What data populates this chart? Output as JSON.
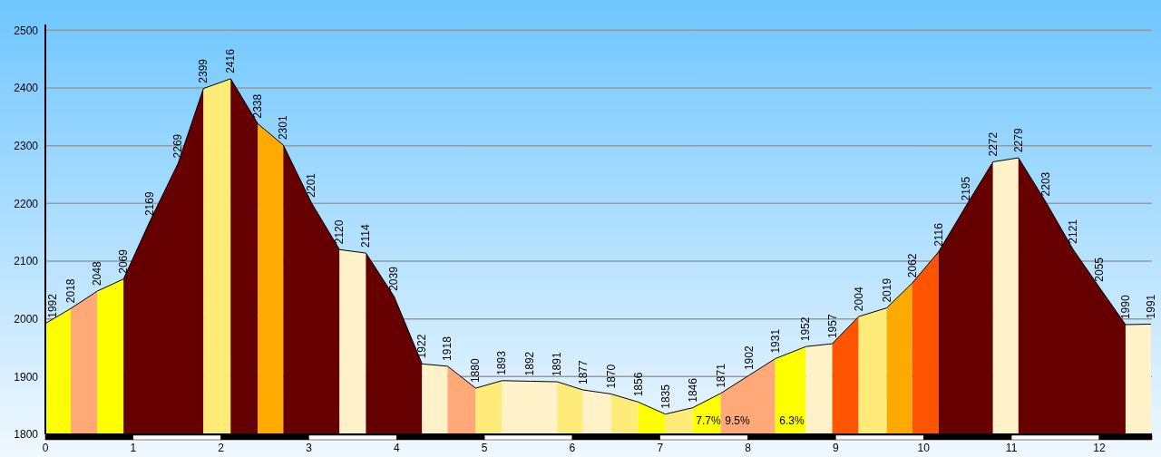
{
  "chart_data": {
    "type": "area",
    "series": [
      {
        "color": "#ffff00",
        "x": [
          0,
          0.29
        ],
        "values": [
          1992,
          2018
        ]
      },
      {
        "color": "#ffa878",
        "x": [
          0.29,
          0.59
        ],
        "values": [
          2018,
          2048
        ]
      },
      {
        "color": "#ffff00",
        "x": [
          0.59,
          0.89
        ],
        "values": [
          2048,
          2069
        ]
      },
      {
        "color": "#660000",
        "x": [
          0.89,
          1.19,
          1.51,
          1.8
        ],
        "values": [
          2069,
          2169,
          2269,
          2399
        ]
      },
      {
        "color": "#ffec78",
        "x": [
          1.8,
          2.11
        ],
        "values": [
          2399,
          2416
        ]
      },
      {
        "color": "#660000",
        "x": [
          2.11,
          2.42
        ],
        "values": [
          2416,
          2338
        ]
      },
      {
        "color": "#ffaa00",
        "x": [
          2.42,
          2.71
        ],
        "values": [
          2338,
          2301
        ]
      },
      {
        "color": "#660000",
        "x": [
          2.71,
          3.03,
          3.35
        ],
        "values": [
          2301,
          2201,
          2120
        ]
      },
      {
        "color": "#fff2c8",
        "x": [
          3.35,
          3.65
        ],
        "values": [
          2120,
          2114
        ]
      },
      {
        "color": "#660000",
        "x": [
          3.65,
          3.97,
          4.29
        ],
        "values": [
          2114,
          2039,
          1922
        ]
      },
      {
        "color": "#fff2c8",
        "x": [
          4.29,
          4.58
        ],
        "values": [
          1922,
          1918
        ]
      },
      {
        "color": "#ffa878",
        "x": [
          4.58,
          4.9
        ],
        "values": [
          1918,
          1880
        ]
      },
      {
        "color": "#ffec78",
        "x": [
          4.9,
          5.2
        ],
        "values": [
          1880,
          1893
        ]
      },
      {
        "color": "#fff2c8",
        "x": [
          5.2,
          5.52,
          5.83
        ],
        "values": [
          1893,
          1892,
          1891
        ]
      },
      {
        "color": "#ffec78",
        "x": [
          5.83,
          6.12
        ],
        "values": [
          1891,
          1877
        ]
      },
      {
        "color": "#fff2c8",
        "x": [
          6.12,
          6.44
        ],
        "values": [
          1877,
          1870
        ]
      },
      {
        "color": "#ffec78",
        "x": [
          6.44,
          6.75
        ],
        "values": [
          1870,
          1856
        ]
      },
      {
        "color": "#ffff00",
        "x": [
          6.75,
          7.06
        ],
        "values": [
          1856,
          1835
        ]
      },
      {
        "color": "#ffec78",
        "x": [
          7.06,
          7.37
        ],
        "values": [
          1835,
          1846
        ]
      },
      {
        "color": "#ffff00",
        "x": [
          7.37,
          7.69
        ],
        "values": [
          1846,
          1871
        ]
      },
      {
        "color": "#ffa878",
        "x": [
          7.69,
          8.01,
          8.31
        ],
        "values": [
          1871,
          1902,
          1931
        ]
      },
      {
        "color": "#ffff00",
        "x": [
          8.31,
          8.66
        ],
        "values": [
          1931,
          1952
        ]
      },
      {
        "color": "#fff2c8",
        "x": [
          8.66,
          8.96
        ],
        "values": [
          1952,
          1957
        ]
      },
      {
        "color": "#ff5500",
        "x": [
          8.96,
          9.26
        ],
        "values": [
          1957,
          2004
        ]
      },
      {
        "color": "#ffec78",
        "x": [
          9.26,
          9.58
        ],
        "values": [
          2004,
          2019
        ]
      },
      {
        "color": "#ffaa00",
        "x": [
          9.58,
          9.87
        ],
        "values": [
          2019,
          2062
        ]
      },
      {
        "color": "#ff5500",
        "x": [
          9.87,
          10.17
        ],
        "values": [
          2062,
          2116
        ]
      },
      {
        "color": "#660000",
        "x": [
          10.17,
          10.48,
          10.79
        ],
        "values": [
          2116,
          2195,
          2272
        ]
      },
      {
        "color": "#fff2c8",
        "x": [
          10.79,
          11.08
        ],
        "values": [
          2272,
          2279
        ]
      },
      {
        "color": "#660000",
        "x": [
          11.08,
          11.39,
          11.7,
          12,
          12.3
        ],
        "values": [
          2279,
          2203,
          2121,
          2055,
          1990
        ]
      },
      {
        "color": "#fff2c8",
        "x": [
          12.3,
          12.59
        ],
        "values": [
          1990,
          1991
        ]
      },
      {
        "type": "line",
        "color": "#000000",
        "x": [
          0,
          0.29,
          0.59,
          0.89,
          1.19,
          1.51,
          1.8,
          2.11,
          2.42,
          2.71,
          3.03,
          3.35,
          3.65,
          3.97,
          4.29,
          4.58,
          4.9,
          5.2,
          5.52,
          5.83,
          6.12,
          6.44,
          6.75,
          7.06,
          7.37,
          7.69,
          8.01,
          8.31,
          8.66,
          8.96,
          9.26,
          9.58,
          9.87,
          10.17,
          10.48,
          10.79,
          11.08,
          11.39,
          11.7,
          12,
          12.3,
          12.59
        ],
        "values": [
          1992,
          2018,
          2048,
          2069,
          2169,
          2269,
          2399,
          2416,
          2338,
          2301,
          2201,
          2120,
          2114,
          2039,
          1922,
          1918,
          1880,
          1893,
          1892,
          1891,
          1877,
          1870,
          1856,
          1835,
          1846,
          1871,
          1902,
          1931,
          1952,
          1957,
          2004,
          2019,
          2062,
          2116,
          2195,
          2272,
          2279,
          2203,
          2121,
          2055,
          1990,
          1991
        ],
        "value_labels": [
          "1992",
          "2018",
          "2048",
          "2069",
          "2169",
          "2269",
          "2399",
          "2416",
          "2338",
          "2301",
          "2201",
          "2120",
          "2114",
          "2039",
          "1922",
          "1918",
          "1880",
          "1893",
          "1892",
          "1891",
          "1877",
          "1870",
          "1856",
          "1835",
          "1846",
          "1871",
          "1902",
          "1931",
          "1952",
          "1957",
          "2004",
          "2019",
          "2062",
          "2116",
          "2195",
          "2272",
          "2279",
          "2203",
          "2121",
          "2055",
          "1990",
          "1991"
        ]
      }
    ],
    "xlim": [
      0,
      12.6
    ],
    "xticks": [
      0,
      1,
      2,
      3,
      4,
      5,
      6,
      7,
      8,
      9,
      10,
      11,
      12
    ],
    "ylim": [
      1800,
      2510
    ],
    "yticks": [
      1800,
      1900,
      2000,
      2100,
      2200,
      2300,
      2400,
      2500
    ],
    "annotations": [
      "7.7%",
      "9.5%",
      "6.3%"
    ],
    "grid": "y",
    "marker": "none"
  }
}
